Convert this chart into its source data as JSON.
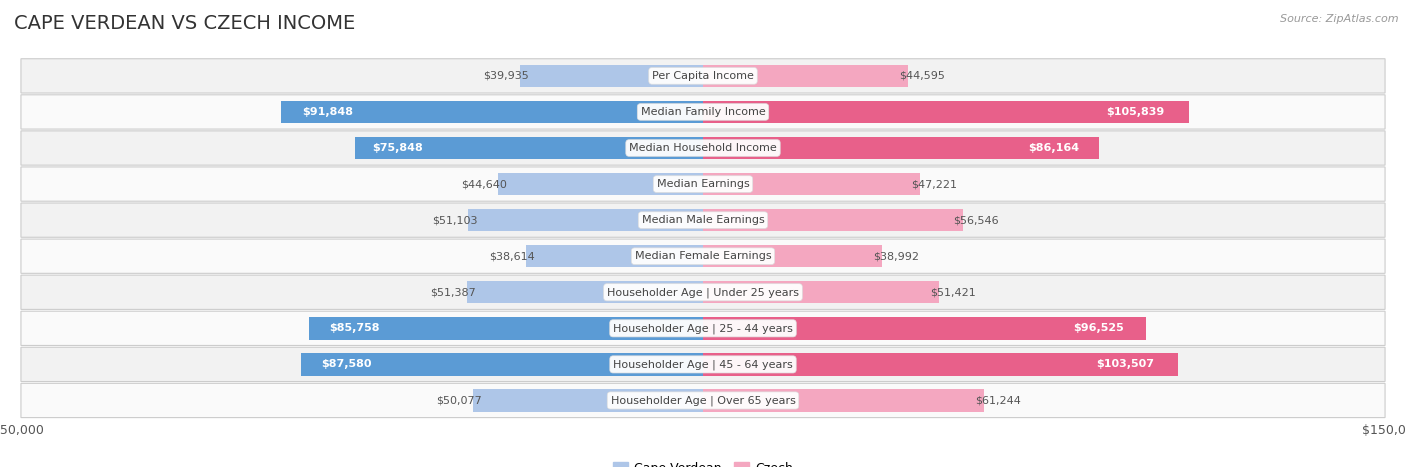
{
  "title": "CAPE VERDEAN VS CZECH INCOME",
  "source": "Source: ZipAtlas.com",
  "categories": [
    "Per Capita Income",
    "Median Family Income",
    "Median Household Income",
    "Median Earnings",
    "Median Male Earnings",
    "Median Female Earnings",
    "Householder Age | Under 25 years",
    "Householder Age | 25 - 44 years",
    "Householder Age | 45 - 64 years",
    "Householder Age | Over 65 years"
  ],
  "cape_verdean": [
    39935,
    91848,
    75848,
    44640,
    51103,
    38614,
    51387,
    85758,
    87580,
    50077
  ],
  "czech": [
    44595,
    105839,
    86164,
    47221,
    56546,
    38992,
    51421,
    96525,
    103507,
    61244
  ],
  "cape_verdean_labels": [
    "$39,935",
    "$91,848",
    "$75,848",
    "$44,640",
    "$51,103",
    "$38,614",
    "$51,387",
    "$85,758",
    "$87,580",
    "$50,077"
  ],
  "czech_labels": [
    "$44,595",
    "$105,839",
    "$86,164",
    "$47,221",
    "$56,546",
    "$38,992",
    "$51,421",
    "$96,525",
    "$103,507",
    "$61,244"
  ],
  "max_val": 150000,
  "cape_verdean_color_strong": "#5b9bd5",
  "cape_verdean_color_light": "#aec6e8",
  "czech_color_strong": "#e8608a",
  "czech_color_light": "#f4a7c0",
  "threshold_strong": 70000,
  "bar_height": 0.62,
  "label_fontsize": 8.0,
  "cat_fontsize": 8.0,
  "title_fontsize": 14,
  "source_fontsize": 8,
  "legend_fontsize": 9,
  "row_bg_odd": "#f2f2f2",
  "row_bg_even": "#fafafa",
  "row_border_color": "#cccccc"
}
